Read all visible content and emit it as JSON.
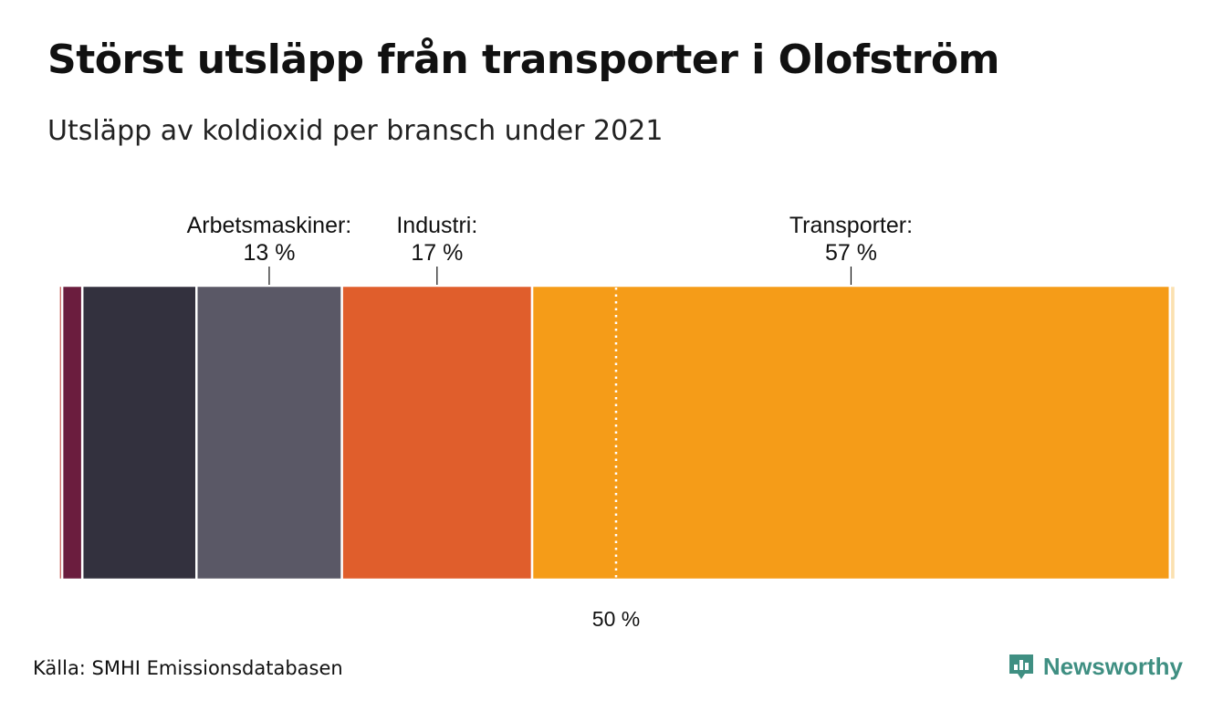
{
  "chart_data": {
    "type": "bar",
    "orientation": "stacked-horizontal-100",
    "title": "Störst utsläpp från transporter i Olofström",
    "subtitle": "Utsläpp av koldioxid per bransch under 2021",
    "xlim": [
      0,
      100
    ],
    "reference_line": {
      "value": 50,
      "label": "50 %"
    },
    "categories": [
      "",
      "",
      "",
      "",
      "Arbetsmaskiner",
      "Industri",
      "Transporter",
      ""
    ],
    "values": [
      0.2,
      0.3,
      1.8,
      10.2,
      13,
      17,
      57,
      0.5
    ],
    "colors": [
      "#f5b8b0",
      "#c2463f",
      "#6b1d3e",
      "#33313e",
      "#5a5866",
      "#e05e2c",
      "#f59c18",
      "#fbe1b0"
    ],
    "labels": [
      {
        "name": "Arbetsmaskiner:",
        "value": "13 %",
        "segment": 4
      },
      {
        "name": "Industri:",
        "value": "17 %",
        "segment": 5
      },
      {
        "name": "Transporter:",
        "value": "57 %",
        "segment": 6
      }
    ]
  },
  "source": "Källa: SMHI Emissionsdatabasen",
  "brand": {
    "name": "Newsworthy",
    "color": "#3f8f82",
    "icon": "chart-bubble-icon"
  }
}
